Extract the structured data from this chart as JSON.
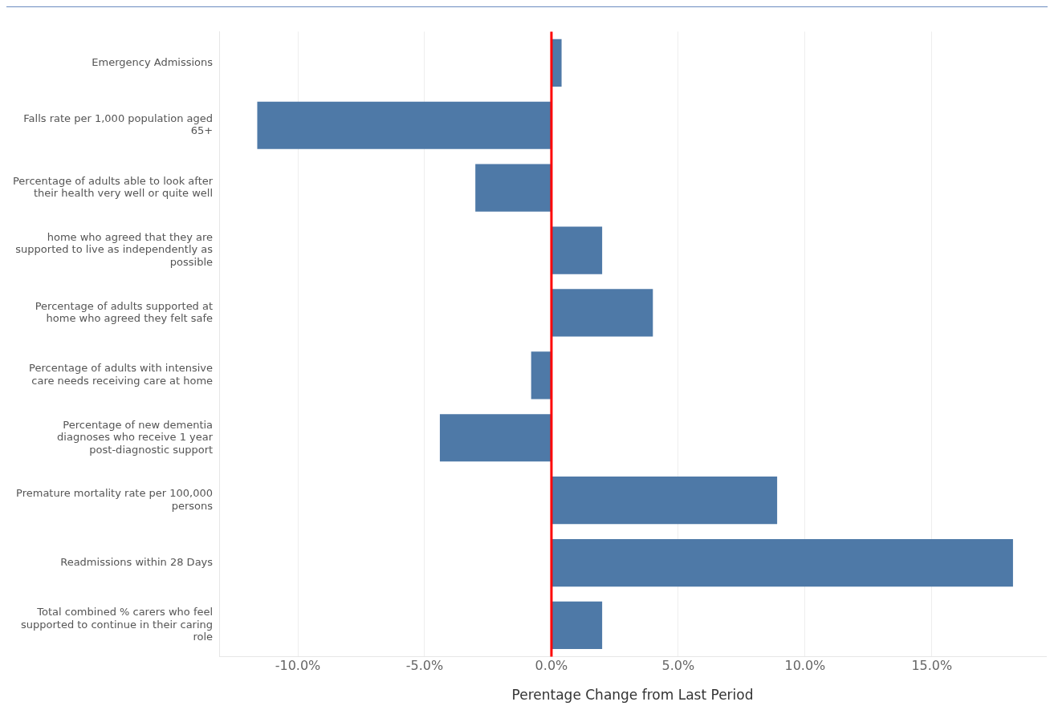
{
  "chart_data": {
    "type": "bar",
    "orientation": "horizontal",
    "xlabel": "Perentage Change from Last Period",
    "categories": [
      "Emergency Admissions",
      "Falls rate per 1,000 population aged 65+",
      "Percentage of adults able to look after their health very well or quite well",
      "home who agreed that they are supported to live as independently as possible",
      "Percentage of adults supported at home who agreed they felt safe",
      "Percentage of adults with intensive care needs receiving care at home",
      "Percentage of new dementia diagnoses who receive 1 year post-diagnostic support",
      "Premature mortality rate per 100,000 persons",
      "Readmissions within 28 Days",
      "Total combined % carers who feel supported to continue in their caring role"
    ],
    "values": [
      0.4,
      -11.6,
      -3.0,
      2.0,
      4.0,
      -0.8,
      -4.4,
      8.9,
      18.2,
      2.0
    ],
    "color": "#4e79a7",
    "xlim": [
      -13.1,
      19.5
    ],
    "xticks": [
      {
        "value": -10,
        "label": "-10.0%"
      },
      {
        "value": -5,
        "label": "-5.0%"
      },
      {
        "value": 0,
        "label": "0.0%"
      },
      {
        "value": 5,
        "label": "5.0%"
      },
      {
        "value": 10,
        "label": "10.0%"
      },
      {
        "value": 15,
        "label": "15.0%"
      }
    ],
    "grid": "x",
    "legend": false,
    "ref_lines": [
      {
        "axis": "x",
        "value": 0,
        "color": "#ff0000"
      }
    ]
  }
}
